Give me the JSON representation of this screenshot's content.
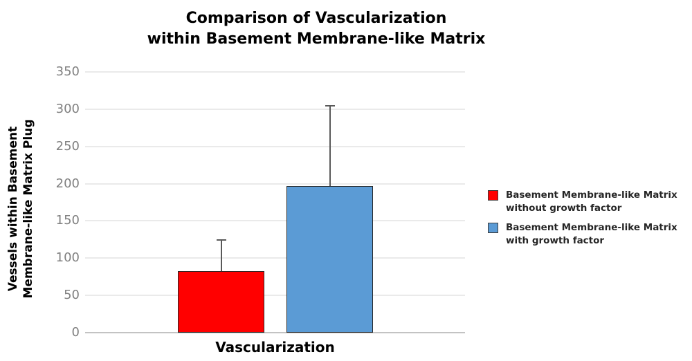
{
  "title": {
    "line1": "Comparison of Vascularization",
    "line2": "within Basement Membrane-like Matrix"
  },
  "y_axis_title": {
    "line1": "Vessels within Basement",
    "line2": "Membrane-like Matrix Plug"
  },
  "x_axis": {
    "label": "Vascularization"
  },
  "legend": {
    "items": [
      {
        "line1": "Basement Membrane-like Matrix",
        "line2": "without growth factor",
        "color": "#FF0000"
      },
      {
        "line1": "Basement Membrane-like Matrix",
        "line2": "with growth factor",
        "color": "#5B9BD5"
      }
    ]
  },
  "chart_data": {
    "type": "bar",
    "title": "Comparison of Vascularization within Basement Membrane-like Matrix",
    "xlabel": "Vascularization",
    "ylabel": "Vessels within Basement Membrane-like Matrix Plug",
    "categories": [
      "Vascularization"
    ],
    "series": [
      {
        "name": "Basement Membrane-like Matrix without growth factor",
        "values": [
          83
        ],
        "error_up": [
          42
        ],
        "color": "#FF0000"
      },
      {
        "name": "Basement Membrane-like Matrix with growth factor",
        "values": [
          197
        ],
        "error_up": [
          108
        ],
        "color": "#5B9BD5"
      }
    ],
    "ylim": [
      0,
      350
    ],
    "yticks": [
      0,
      50,
      100,
      150,
      200,
      250,
      300,
      350
    ],
    "grid": true,
    "legend_position": "right",
    "error_bar_color": "#595959",
    "bar_border_color": "#262626",
    "gridline_color": "#eaeaea"
  }
}
